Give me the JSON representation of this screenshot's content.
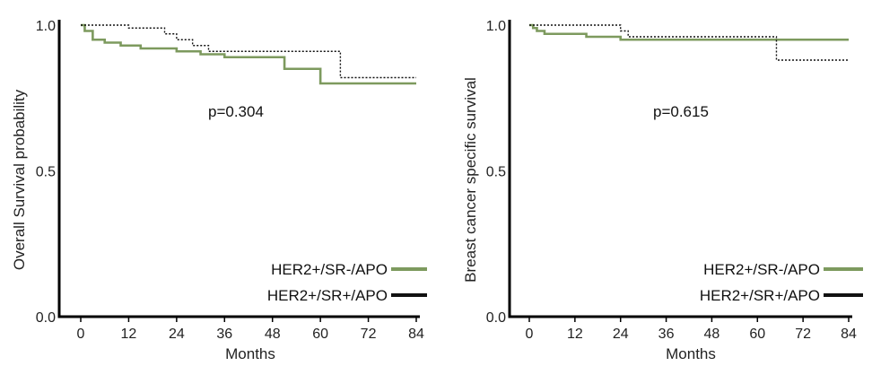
{
  "chart_data": [
    {
      "type": "line",
      "subtype": "kaplan-meier",
      "title": "",
      "xlabel": "Months",
      "ylabel": "Overall Survival probability",
      "xlim": [
        0,
        84
      ],
      "ylim": [
        0,
        1.0
      ],
      "xticks": [
        "0",
        "12",
        "24",
        "36",
        "48",
        "60",
        "72",
        "84"
      ],
      "yticks": [
        "0.0",
        "0.5",
        "1.0"
      ],
      "grid": false,
      "legend_position": "bottom-right",
      "annotation": "p=0.304",
      "series": [
        {
          "name": "HER2+/SR-/APO",
          "color": "#7d9a5e",
          "style": "solid",
          "x": [
            0,
            1,
            3,
            6,
            10,
            15,
            24,
            30,
            36,
            51,
            60,
            85
          ],
          "y": [
            1.0,
            0.98,
            0.95,
            0.94,
            0.93,
            0.92,
            0.91,
            0.9,
            0.89,
            0.85,
            0.8,
            0.8
          ]
        },
        {
          "name": "HER2+/SR+/APO",
          "color": "#111111",
          "style": "dotted",
          "x": [
            0,
            12,
            21,
            24,
            28,
            32,
            65,
            85
          ],
          "y": [
            1.0,
            0.99,
            0.97,
            0.95,
            0.93,
            0.91,
            0.82,
            0.82
          ]
        }
      ]
    },
    {
      "type": "line",
      "subtype": "kaplan-meier",
      "title": "",
      "xlabel": "Months",
      "ylabel": "Breast cancer specific survival",
      "xlim": [
        0,
        84
      ],
      "ylim": [
        0,
        1.0
      ],
      "xticks": [
        "0",
        "12",
        "24",
        "36",
        "48",
        "60",
        "72",
        "84"
      ],
      "yticks": [
        "0.0",
        "0.5",
        "1.0"
      ],
      "grid": false,
      "legend_position": "bottom-right",
      "annotation": "p=0.615",
      "series": [
        {
          "name": "HER2+/SR-/APO",
          "color": "#7d9a5e",
          "style": "solid",
          "x": [
            0,
            1,
            2,
            4,
            15,
            24,
            85
          ],
          "y": [
            1.0,
            0.99,
            0.98,
            0.97,
            0.96,
            0.95,
            0.95
          ]
        },
        {
          "name": "HER2+/SR+/APO",
          "color": "#111111",
          "style": "dotted",
          "x": [
            0,
            24,
            26,
            65,
            85
          ],
          "y": [
            1.0,
            0.98,
            0.96,
            0.88,
            0.88
          ]
        }
      ]
    }
  ]
}
